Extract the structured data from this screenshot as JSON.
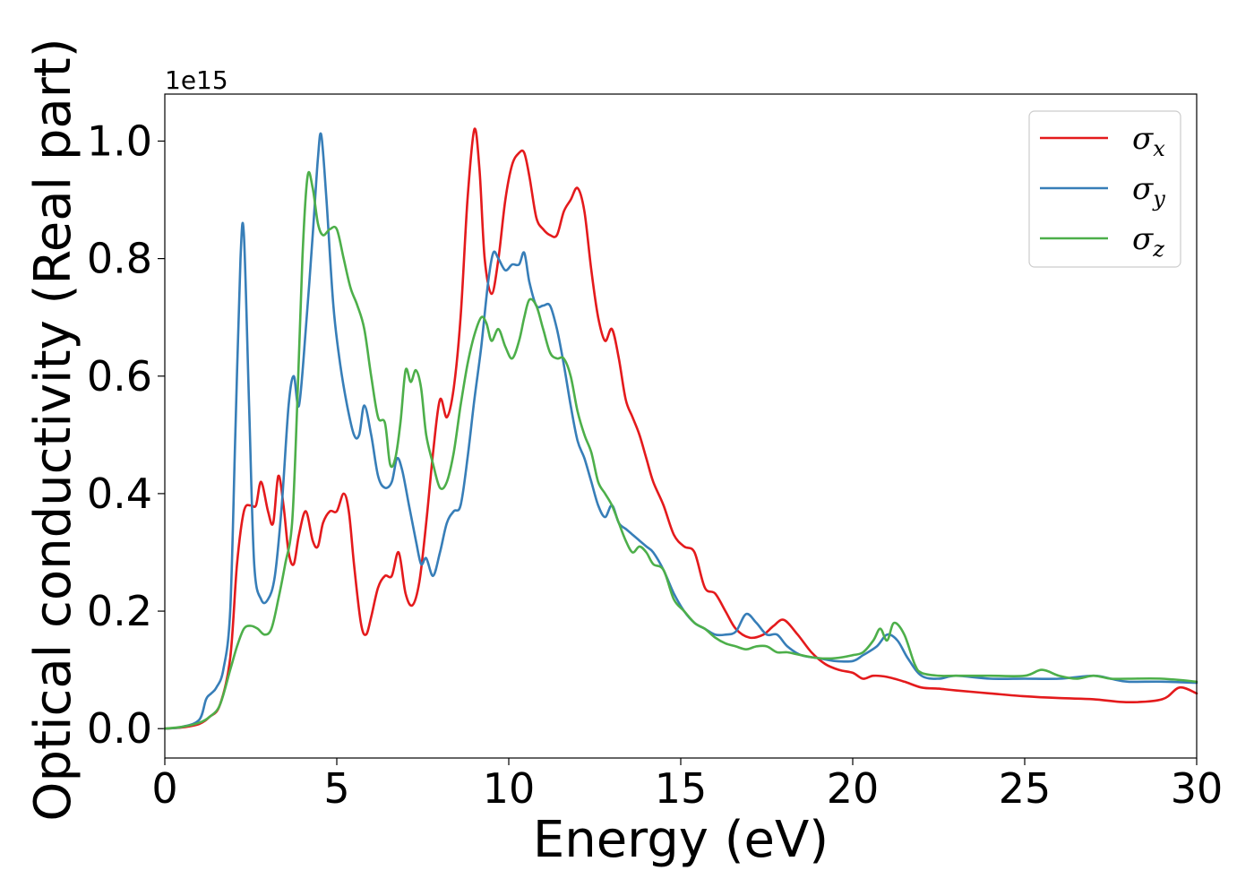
{
  "chart_data": {
    "type": "line",
    "xlabel": "Energy (eV)",
    "ylabel": "Optical conductivity (Real part)",
    "offset_text": "1e15",
    "scale": 1000000000000000.0,
    "xlim": [
      0,
      30
    ],
    "ylim": [
      -0.05,
      1.08
    ],
    "xticks": [
      0,
      5,
      10,
      15,
      20,
      25,
      30
    ],
    "xtick_labels": [
      "0",
      "5",
      "10",
      "15",
      "20",
      "25",
      "30"
    ],
    "yticks": [
      0.0,
      0.2,
      0.4,
      0.6,
      0.8,
      1.0
    ],
    "ytick_labels": [
      "0.0",
      "0.2",
      "0.4",
      "0.6",
      "0.8",
      "1.0"
    ],
    "grid": false,
    "legend_position": "top-right",
    "series": [
      {
        "name": "σx",
        "symbol": "σ",
        "subscript": "x",
        "color": "#e41a1c",
        "x": [
          0,
          0.5,
          1.0,
          1.3,
          1.6,
          1.9,
          2.1,
          2.3,
          2.5,
          2.65,
          2.8,
          3.0,
          3.15,
          3.3,
          3.45,
          3.6,
          3.75,
          3.9,
          4.1,
          4.3,
          4.45,
          4.6,
          4.8,
          5.0,
          5.2,
          5.35,
          5.5,
          5.7,
          5.85,
          6.0,
          6.2,
          6.4,
          6.6,
          6.8,
          7.0,
          7.2,
          7.4,
          7.6,
          7.8,
          8.0,
          8.2,
          8.4,
          8.6,
          8.8,
          9.0,
          9.15,
          9.3,
          9.5,
          9.7,
          9.9,
          10.1,
          10.3,
          10.45,
          10.6,
          10.8,
          11.0,
          11.2,
          11.4,
          11.6,
          11.8,
          12.0,
          12.2,
          12.4,
          12.6,
          12.8,
          13.0,
          13.2,
          13.4,
          13.6,
          13.8,
          14.0,
          14.2,
          14.5,
          14.8,
          15.1,
          15.4,
          15.7,
          16.0,
          16.3,
          16.6,
          17.0,
          17.4,
          17.7,
          18.0,
          18.4,
          18.8,
          19.2,
          19.6,
          20.0,
          20.3,
          20.6,
          21.0,
          21.5,
          22.0,
          22.5,
          23.0,
          24.0,
          25.0,
          26.0,
          27.0,
          28.0,
          29.0,
          29.5,
          30.0
        ],
        "values": [
          0.0,
          0.002,
          0.008,
          0.02,
          0.04,
          0.12,
          0.28,
          0.37,
          0.38,
          0.38,
          0.42,
          0.37,
          0.35,
          0.43,
          0.38,
          0.3,
          0.28,
          0.33,
          0.37,
          0.32,
          0.31,
          0.35,
          0.37,
          0.37,
          0.4,
          0.37,
          0.28,
          0.18,
          0.16,
          0.19,
          0.24,
          0.26,
          0.26,
          0.3,
          0.23,
          0.21,
          0.25,
          0.35,
          0.47,
          0.56,
          0.53,
          0.58,
          0.7,
          0.9,
          1.02,
          0.95,
          0.8,
          0.74,
          0.8,
          0.9,
          0.96,
          0.98,
          0.98,
          0.94,
          0.87,
          0.85,
          0.84,
          0.84,
          0.88,
          0.9,
          0.92,
          0.88,
          0.78,
          0.7,
          0.66,
          0.68,
          0.63,
          0.56,
          0.53,
          0.5,
          0.46,
          0.42,
          0.38,
          0.33,
          0.31,
          0.3,
          0.24,
          0.23,
          0.2,
          0.17,
          0.155,
          0.16,
          0.175,
          0.185,
          0.16,
          0.13,
          0.11,
          0.1,
          0.095,
          0.085,
          0.09,
          0.088,
          0.08,
          0.07,
          0.068,
          0.065,
          0.06,
          0.055,
          0.052,
          0.05,
          0.045,
          0.05,
          0.07,
          0.06
        ]
      },
      {
        "name": "σy",
        "symbol": "σ",
        "subscript": "y",
        "color": "#377eb8",
        "x": [
          0,
          0.5,
          1.0,
          1.2,
          1.35,
          1.5,
          1.7,
          1.9,
          2.05,
          2.2,
          2.3,
          2.45,
          2.6,
          2.8,
          3.0,
          3.2,
          3.4,
          3.6,
          3.75,
          3.9,
          4.1,
          4.3,
          4.45,
          4.55,
          4.7,
          4.9,
          5.1,
          5.3,
          5.5,
          5.65,
          5.8,
          6.0,
          6.2,
          6.4,
          6.6,
          6.75,
          6.9,
          7.1,
          7.3,
          7.45,
          7.6,
          7.8,
          8.0,
          8.2,
          8.4,
          8.6,
          8.8,
          9.0,
          9.2,
          9.4,
          9.55,
          9.7,
          9.9,
          10.1,
          10.3,
          10.45,
          10.6,
          10.8,
          11.0,
          11.2,
          11.4,
          11.6,
          11.8,
          12.0,
          12.2,
          12.4,
          12.6,
          12.8,
          13.0,
          13.2,
          13.4,
          13.6,
          13.8,
          14.0,
          14.2,
          14.5,
          14.8,
          15.1,
          15.4,
          15.7,
          16.0,
          16.3,
          16.6,
          16.9,
          17.2,
          17.5,
          17.8,
          18.1,
          18.5,
          19.0,
          19.5,
          20.0,
          20.3,
          20.7,
          21.0,
          21.3,
          21.6,
          22.0,
          22.5,
          23.0,
          24.0,
          25.0,
          26.0,
          27.0,
          27.5,
          28.0,
          29.0,
          30.0
        ],
        "values": [
          0.0,
          0.003,
          0.015,
          0.05,
          0.06,
          0.07,
          0.1,
          0.2,
          0.5,
          0.8,
          0.84,
          0.55,
          0.28,
          0.22,
          0.22,
          0.26,
          0.38,
          0.55,
          0.6,
          0.55,
          0.68,
          0.84,
          0.97,
          1.01,
          0.9,
          0.72,
          0.62,
          0.55,
          0.5,
          0.5,
          0.55,
          0.5,
          0.43,
          0.41,
          0.42,
          0.46,
          0.44,
          0.38,
          0.32,
          0.28,
          0.29,
          0.26,
          0.3,
          0.35,
          0.37,
          0.38,
          0.46,
          0.56,
          0.65,
          0.76,
          0.81,
          0.8,
          0.78,
          0.79,
          0.79,
          0.81,
          0.76,
          0.72,
          0.72,
          0.72,
          0.68,
          0.62,
          0.55,
          0.49,
          0.46,
          0.42,
          0.38,
          0.36,
          0.38,
          0.35,
          0.34,
          0.33,
          0.32,
          0.31,
          0.3,
          0.27,
          0.23,
          0.2,
          0.18,
          0.17,
          0.16,
          0.16,
          0.165,
          0.195,
          0.18,
          0.16,
          0.16,
          0.14,
          0.125,
          0.12,
          0.115,
          0.115,
          0.125,
          0.14,
          0.16,
          0.15,
          0.12,
          0.09,
          0.085,
          0.09,
          0.085,
          0.085,
          0.085,
          0.09,
          0.085,
          0.08,
          0.08,
          0.078
        ]
      },
      {
        "name": "σz",
        "symbol": "σ",
        "subscript": "z",
        "color": "#4daf4a",
        "x": [
          0,
          0.5,
          1.0,
          1.3,
          1.6,
          1.9,
          2.1,
          2.3,
          2.5,
          2.7,
          2.9,
          3.1,
          3.3,
          3.5,
          3.7,
          3.85,
          4.0,
          4.15,
          4.3,
          4.45,
          4.6,
          4.8,
          5.0,
          5.2,
          5.4,
          5.6,
          5.8,
          6.0,
          6.2,
          6.4,
          6.55,
          6.7,
          6.85,
          7.0,
          7.15,
          7.3,
          7.45,
          7.6,
          7.8,
          8.0,
          8.2,
          8.4,
          8.6,
          8.8,
          9.0,
          9.2,
          9.35,
          9.5,
          9.7,
          9.9,
          10.1,
          10.3,
          10.45,
          10.6,
          10.8,
          11.0,
          11.2,
          11.4,
          11.6,
          11.8,
          12.0,
          12.2,
          12.4,
          12.6,
          12.8,
          13.0,
          13.2,
          13.4,
          13.6,
          13.8,
          14.0,
          14.2,
          14.5,
          14.8,
          15.1,
          15.4,
          15.7,
          16.0,
          16.3,
          16.6,
          16.9,
          17.2,
          17.5,
          17.8,
          18.1,
          18.5,
          19.0,
          19.5,
          20.0,
          20.3,
          20.6,
          20.8,
          21.0,
          21.2,
          21.5,
          21.8,
          22.0,
          22.5,
          23.0,
          24.0,
          25.0,
          25.5,
          26.0,
          26.5,
          27.0,
          27.5,
          28.0,
          29.0,
          30.0
        ],
        "values": [
          0.0,
          0.003,
          0.01,
          0.02,
          0.04,
          0.1,
          0.14,
          0.17,
          0.175,
          0.17,
          0.16,
          0.17,
          0.22,
          0.28,
          0.35,
          0.55,
          0.8,
          0.94,
          0.92,
          0.86,
          0.84,
          0.85,
          0.85,
          0.8,
          0.75,
          0.72,
          0.68,
          0.6,
          0.53,
          0.52,
          0.45,
          0.46,
          0.52,
          0.61,
          0.59,
          0.61,
          0.58,
          0.5,
          0.45,
          0.41,
          0.42,
          0.47,
          0.55,
          0.62,
          0.67,
          0.7,
          0.69,
          0.66,
          0.68,
          0.65,
          0.63,
          0.66,
          0.7,
          0.73,
          0.72,
          0.68,
          0.64,
          0.63,
          0.63,
          0.6,
          0.54,
          0.5,
          0.47,
          0.42,
          0.4,
          0.38,
          0.35,
          0.32,
          0.3,
          0.31,
          0.3,
          0.28,
          0.27,
          0.22,
          0.2,
          0.18,
          0.17,
          0.155,
          0.145,
          0.14,
          0.135,
          0.14,
          0.14,
          0.13,
          0.13,
          0.125,
          0.12,
          0.12,
          0.125,
          0.13,
          0.15,
          0.17,
          0.15,
          0.18,
          0.16,
          0.11,
          0.095,
          0.09,
          0.09,
          0.09,
          0.09,
          0.1,
          0.09,
          0.085,
          0.09,
          0.085,
          0.085,
          0.085,
          0.08
        ]
      }
    ]
  }
}
